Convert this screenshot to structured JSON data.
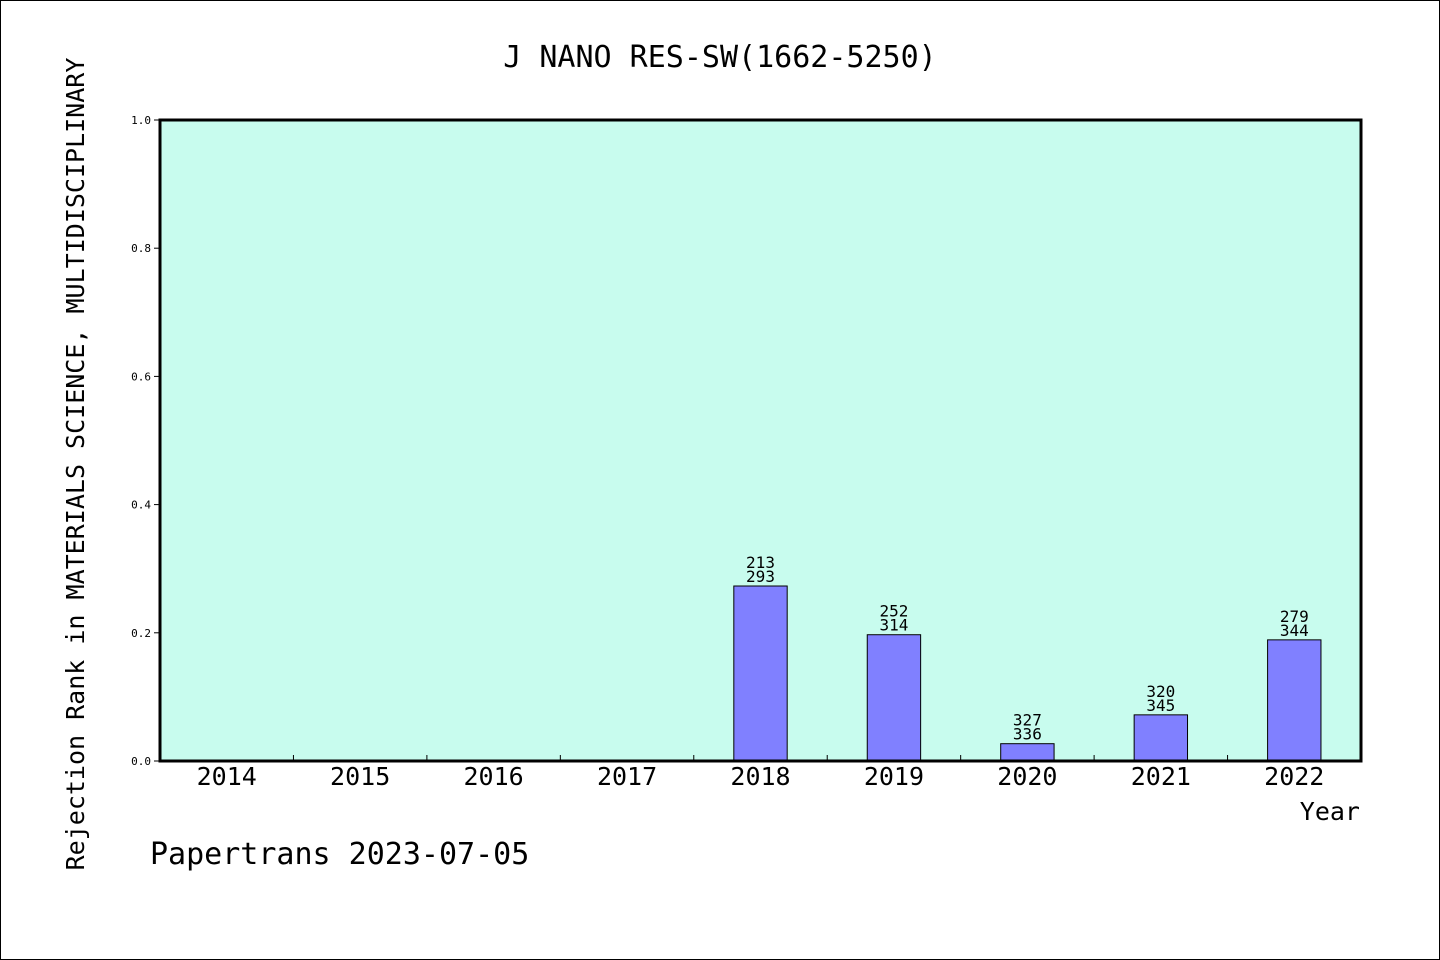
{
  "chart_data": {
    "type": "bar",
    "title": "J NANO RES-SW(1662-5250)",
    "xlabel": "Year",
    "ylabel": "Rejection Rank in MATERIALS SCIENCE, MULTIDISCIPLINARY",
    "ylim": [
      0,
      1.0
    ],
    "yticks": [
      "0.0",
      "0.2",
      "0.4",
      "0.6",
      "0.8",
      "1.0"
    ],
    "yticks_values": [
      0,
      0.2,
      0.4,
      0.6,
      0.8,
      1.0
    ],
    "categories": [
      "2014",
      "2015",
      "2016",
      "2017",
      "2018",
      "2019",
      "2020",
      "2021",
      "2022"
    ],
    "values": [
      null,
      null,
      null,
      null,
      0.273,
      0.197,
      0.027,
      0.072,
      0.189
    ],
    "labels_top": [
      null,
      null,
      null,
      null,
      "213",
      "252",
      "327",
      "320",
      "279"
    ],
    "labels_bottom": [
      null,
      null,
      null,
      null,
      "293",
      "314",
      "336",
      "345",
      "344"
    ],
    "grid": false,
    "legend": "none",
    "colors": {
      "plot_background": "#c8fcee",
      "bar_fill": "#8080ff",
      "bar_stroke": "#000000"
    }
  },
  "footer": {
    "credit": "Papertrans 2023-07-05"
  }
}
